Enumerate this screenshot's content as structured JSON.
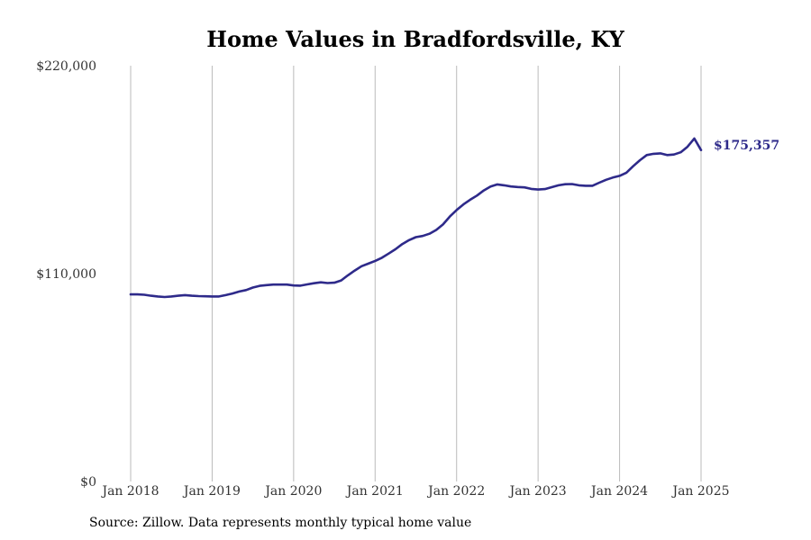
{
  "chart_data": {
    "type": "line",
    "title": "Home Values in Bradfordsville, KY",
    "xlabel": "",
    "ylabel": "",
    "x_ticks": [
      "Jan 2018",
      "Jan 2019",
      "Jan 2020",
      "Jan 2021",
      "Jan 2022",
      "Jan 2023",
      "Jan 2024",
      "Jan 2025"
    ],
    "y_ticks": [
      "$0",
      "$110,000",
      "$220,000"
    ],
    "ylim": [
      0,
      220000
    ],
    "xlim": [
      "2018-01",
      "2025-01"
    ],
    "grid": "vertical",
    "line_color": "#2e2a8a",
    "series": [
      {
        "x": [
          "2018-01",
          "2018-02",
          "2018-03",
          "2018-04",
          "2018-05",
          "2018-06",
          "2018-07",
          "2018-08",
          "2018-09",
          "2018-10",
          "2018-11",
          "2018-12",
          "2019-01",
          "2019-02",
          "2019-03",
          "2019-04",
          "2019-05",
          "2019-06",
          "2019-07",
          "2019-08",
          "2019-09",
          "2019-10",
          "2019-11",
          "2019-12",
          "2020-01",
          "2020-02",
          "2020-03",
          "2020-04",
          "2020-05",
          "2020-06",
          "2020-07",
          "2020-08",
          "2020-09",
          "2020-10",
          "2020-11",
          "2020-12",
          "2021-01",
          "2021-02",
          "2021-03",
          "2021-04",
          "2021-05",
          "2021-06",
          "2021-07",
          "2021-08",
          "2021-09",
          "2021-10",
          "2021-11",
          "2021-12",
          "2022-01",
          "2022-02",
          "2022-03",
          "2022-04",
          "2022-05",
          "2022-06",
          "2022-07",
          "2022-08",
          "2022-09",
          "2022-10",
          "2022-11",
          "2022-12",
          "2023-01",
          "2023-02",
          "2023-03",
          "2023-04",
          "2023-05",
          "2023-06",
          "2023-07",
          "2023-08",
          "2023-09",
          "2023-10",
          "2023-11",
          "2023-12",
          "2024-01",
          "2024-02",
          "2024-03",
          "2024-04",
          "2024-05",
          "2024-06",
          "2024-07",
          "2024-08",
          "2024-09",
          "2024-10",
          "2024-11",
          "2024-12",
          "2025-01"
        ],
        "values": [
          99000,
          99000,
          98800,
          98300,
          97900,
          97600,
          97900,
          98300,
          98600,
          98300,
          98100,
          98000,
          97900,
          97900,
          98600,
          99500,
          100500,
          101300,
          102600,
          103500,
          103900,
          104200,
          104200,
          104200,
          103700,
          103600,
          104300,
          104900,
          105400,
          105000,
          105200,
          106400,
          109100,
          111600,
          113900,
          115300,
          116700,
          118400,
          120600,
          122900,
          125600,
          127700,
          129300,
          129900,
          131100,
          133100,
          136000,
          140200,
          143600,
          146600,
          149100,
          151300,
          154000,
          156100,
          157200,
          156700,
          156100,
          155800,
          155600,
          154800,
          154500,
          154700,
          155700,
          156700,
          157300,
          157400,
          156700,
          156500,
          156500,
          158100,
          159600,
          160800,
          161700,
          163400,
          166800,
          170000,
          172700,
          173400,
          173600,
          172700,
          173000,
          174200,
          177100,
          181500,
          175357
        ],
        "end_label": "$175,357"
      }
    ]
  },
  "source": "Source: Zillow. Data represents monthly typical home value"
}
